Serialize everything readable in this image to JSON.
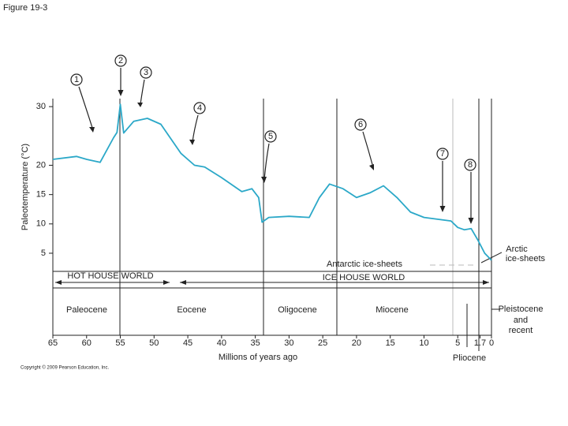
{
  "chart_data": {
    "type": "line",
    "title": "Figure 19-3",
    "x_label": "Millions of years ago",
    "y_label": "Paleotemperature (°C)",
    "x": [
      65,
      61.5,
      60,
      58,
      56,
      55.5,
      55,
      54.5,
      53,
      51,
      49,
      46,
      44,
      42.5,
      40,
      37,
      35.5,
      34.5,
      34,
      33,
      30,
      27,
      25.5,
      24,
      22,
      20,
      18,
      16,
      14,
      12,
      10,
      6,
      5,
      4,
      3,
      2,
      1,
      0
    ],
    "series": [
      {
        "name": "Paleotemperature",
        "color": "#2ba8c8",
        "values": [
          21,
          21.5,
          21,
          20.5,
          24.7,
          25.6,
          30.4,
          25.5,
          27.5,
          28,
          27,
          22,
          20,
          19.7,
          17.9,
          15.5,
          16,
          14.5,
          10.3,
          11.1,
          11.3,
          11.1,
          14.5,
          16.8,
          16,
          14.5,
          15.3,
          16.5,
          14.5,
          12,
          11.1,
          10.5,
          9.4,
          9,
          9.2,
          7.2,
          5,
          3.8
        ]
      }
    ],
    "xlim": [
      65,
      0
    ],
    "xticks": [
      65,
      60,
      55,
      50,
      45,
      40,
      35,
      30,
      25,
      20,
      15,
      10,
      5,
      1.7,
      0
    ],
    "ylim": [
      1.5,
      31.5
    ],
    "yticks": [
      30,
      20,
      15,
      10,
      5
    ],
    "annotations": {
      "markers": [
        "1",
        "2",
        "3",
        "4",
        "5",
        "6",
        "7",
        "8"
      ],
      "hot_house": "HOT HOUSE WORLD",
      "ice_house": "ICE HOUSE WORLD",
      "antarctic": "Antarctic ice-sheets",
      "arctic": [
        "Arctic",
        "ice-sheets"
      ],
      "epochs": [
        "Paleocene",
        "Eocene",
        "Oligocene",
        "Miocene"
      ],
      "pleistocene": [
        "Pleistocene",
        "and",
        "recent"
      ],
      "pliocene": "Pliocene",
      "copyright": "Copyright © 2009 Pearson Education, Inc."
    }
  }
}
